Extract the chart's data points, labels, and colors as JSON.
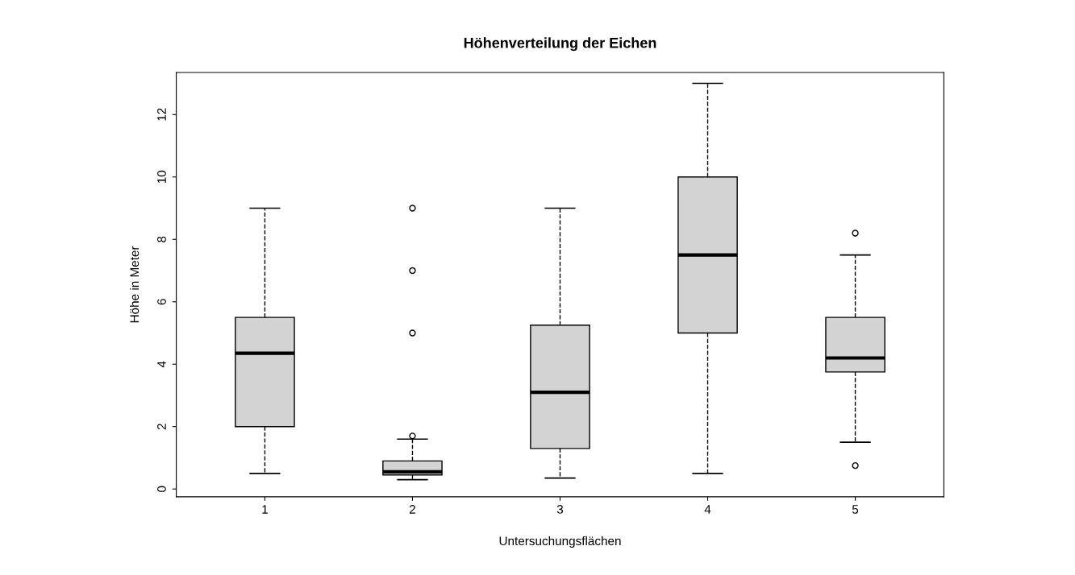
{
  "chart_data": {
    "type": "box",
    "title": "Höhenverteilung der Eichen",
    "xlabel": "Untersuchungsflächen",
    "ylabel": "Höhe in Meter",
    "categories": [
      "1",
      "2",
      "3",
      "4",
      "5"
    ],
    "boxes": [
      {
        "low": 0.5,
        "q1": 2.0,
        "median": 4.35,
        "q3": 5.5,
        "high": 9.0
      },
      {
        "low": 0.3,
        "q1": 0.45,
        "median": 0.55,
        "q3": 0.9,
        "high": 1.6,
        "outliers": [
          1.7,
          5.0,
          7.0,
          9.0
        ]
      },
      {
        "low": 0.35,
        "q1": 1.3,
        "median": 3.1,
        "q3": 5.25,
        "high": 9.0
      },
      {
        "low": 0.5,
        "q1": 5.0,
        "median": 7.5,
        "q3": 10.0,
        "high": 13.0
      },
      {
        "low": 1.5,
        "q1": 3.75,
        "median": 4.2,
        "q3": 5.5,
        "high": 7.5,
        "outliers": [
          0.75,
          8.2
        ]
      }
    ],
    "color": "#d3d3d3",
    "ylim": [
      -0.25,
      13.35
    ],
    "yticks": [
      0,
      2,
      4,
      6,
      8,
      10,
      12
    ],
    "grid": false,
    "line_style": "dashed",
    "marker": "circle"
  }
}
